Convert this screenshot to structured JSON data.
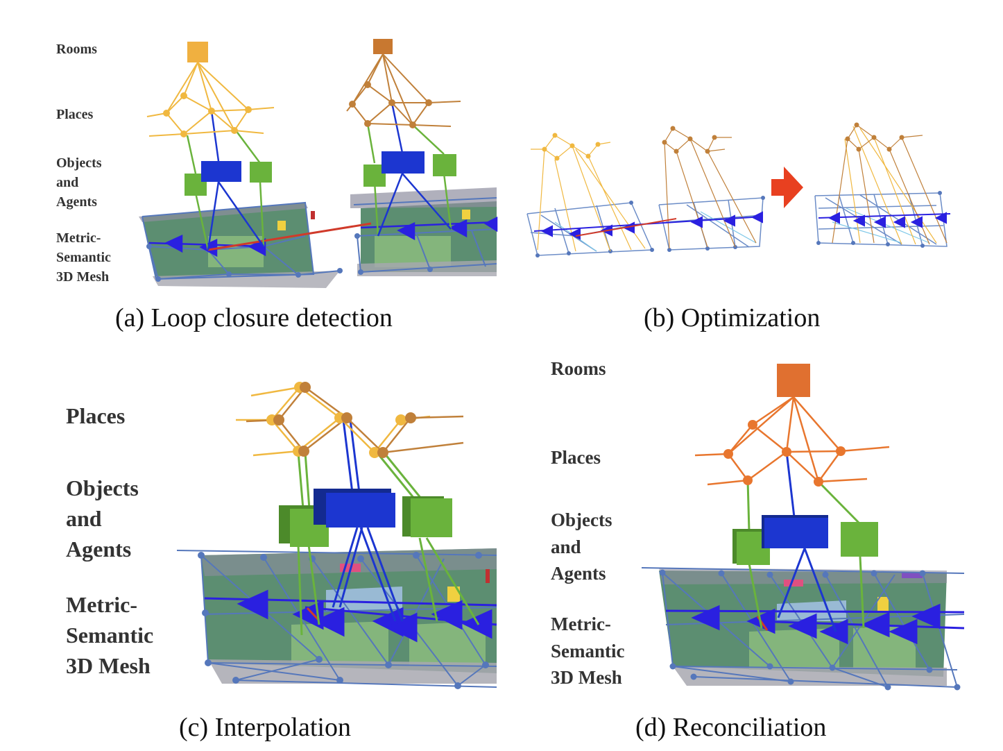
{
  "panels": {
    "a": {
      "caption": "(a) Loop closure detection",
      "labels": {
        "rooms": "Rooms",
        "places": "Places",
        "objects": "Objects\nand\nAgents",
        "mesh": "Metric-\nSemantic\n3D Mesh"
      }
    },
    "b": {
      "caption": "(b) Optimization"
    },
    "c": {
      "caption": "(c) Interpolation",
      "labels": {
        "places": "Places",
        "objects": "Objects\nand\nAgents",
        "mesh": "Metric-\nSemantic\n3D Mesh"
      }
    },
    "d": {
      "caption": "(d) Reconciliation",
      "labels": {
        "rooms": "Rooms",
        "places": "Places",
        "objects": "Objects\nand\nAgents",
        "mesh": "Metric-\nSemantic\n3D Mesh"
      }
    }
  },
  "colors": {
    "room_a1": "#f0b040",
    "room_a2": "#c87830",
    "room_d": "#e07030",
    "places_yellow": "#f0b840",
    "places_brown": "#c0803a",
    "places_orange": "#e8762e",
    "object_green": "#6ab33c",
    "object_blue": "#1c36d0",
    "pose_graph": "#5577bb",
    "trajectory": "#2a20e0",
    "loop_closure": "#d03a2a",
    "mesh_green": "#3f7a58",
    "arrow_red": "#e84020"
  }
}
